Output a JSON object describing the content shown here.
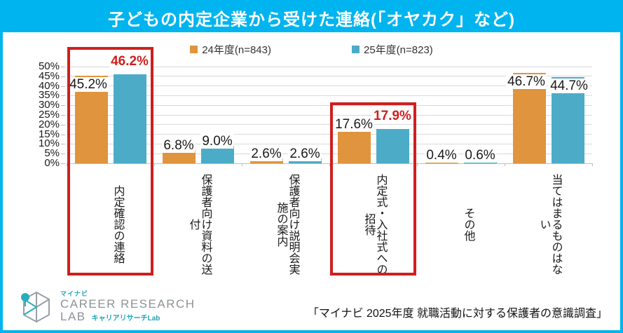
{
  "theme": {
    "accent": "#00B4EF",
    "red": "#CF1F1E",
    "grid": "#D9D9D9"
  },
  "header": {
    "title": "子どもの内定企業から受けた連絡(「オヤカク」など)"
  },
  "legend": [
    {
      "label": "24年度(n=843)",
      "color": "#E0943E"
    },
    {
      "label": "25年度(n=823)",
      "color": "#4CACC8"
    }
  ],
  "chart_data": {
    "type": "bar",
    "title": "子どもの内定企業から受けた連絡(「オヤカク」など)",
    "categories": [
      "内定確認の連絡",
      "保護者向け資料の送付",
      "保護者向け説明会実施の案内",
      "内定式・入社式への招待",
      "その他",
      "当てはまるものはない"
    ],
    "series": [
      {
        "name": "24年度(n=843)",
        "color": "#E0943E",
        "values": [
          45.2,
          6.8,
          2.6,
          17.6,
          0.4,
          46.7
        ]
      },
      {
        "name": "25年度(n=823)",
        "color": "#4CACC8",
        "values": [
          46.2,
          9.0,
          2.6,
          17.9,
          0.6,
          44.7
        ]
      }
    ],
    "ylim": [
      0,
      50
    ],
    "ytick_step": 5,
    "ytick_suffix": "%",
    "grid": true,
    "legend_position": "top",
    "value_label_suffix": "%",
    "highlight_boxes": [
      0,
      3
    ],
    "highlight_value_labels": [
      {
        "series": 1,
        "category": 0
      },
      {
        "series": 1,
        "category": 3
      }
    ]
  },
  "footer": {
    "logo": {
      "brand": "マイナビ",
      "line1": "CAREER RESEARCH",
      "line2": "LAB",
      "sub": "キャリアリサーチLab"
    },
    "source": "「マイナビ 2025年度 就職活動に対する保護者の意識調査」"
  }
}
